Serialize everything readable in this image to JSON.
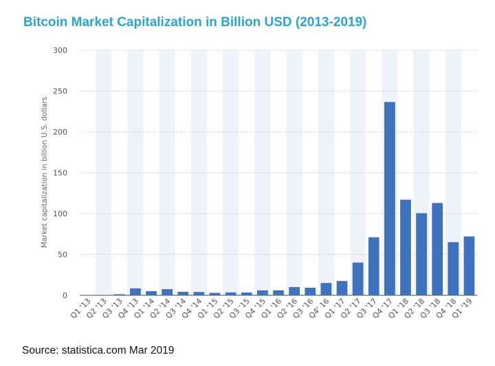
{
  "title": "Bitcoin Market Capitalization in Billion USD (2013-2019)",
  "source": "Source: statistica.com Mar 2019",
  "chart_data": {
    "type": "bar",
    "ylabel": "Market capitalization in billion U.S. dollars",
    "xlabel": "",
    "ylim": [
      0,
      300
    ],
    "yticks": [
      0,
      50,
      100,
      150,
      200,
      250,
      300
    ],
    "grid": true,
    "bar_color": "#3f72be",
    "band_color": "#eef2f9",
    "categories": [
      "Q1 '13",
      "Q2 '13",
      "Q3 '13",
      "Q4 '13",
      "Q1 '14",
      "Q2 '14",
      "Q3 '14",
      "Q4 '14",
      "Q1 '15",
      "Q2 '15",
      "Q3 '15",
      "Q4 '15",
      "Q1 '16",
      "Q2 '16",
      "Q3 '16",
      "Q4' 16",
      "Q1 '17",
      "Q2 '17",
      "Q3 '17",
      "Q4 '17",
      "Q1 '18",
      "Q2 '18",
      "Q3 '18",
      "Q4 '18",
      "Q1 '19"
    ],
    "values": [
      0.2,
      0.2,
      1.3,
      8.4,
      5.0,
      7.5,
      4.3,
      4.0,
      2.9,
      3.5,
      3.4,
      6.0,
      6.1,
      10.0,
      9.3,
      15.0,
      17.5,
      40.0,
      71.0,
      236.5,
      117.0,
      100.5,
      113.0,
      65.0,
      72.0
    ]
  }
}
